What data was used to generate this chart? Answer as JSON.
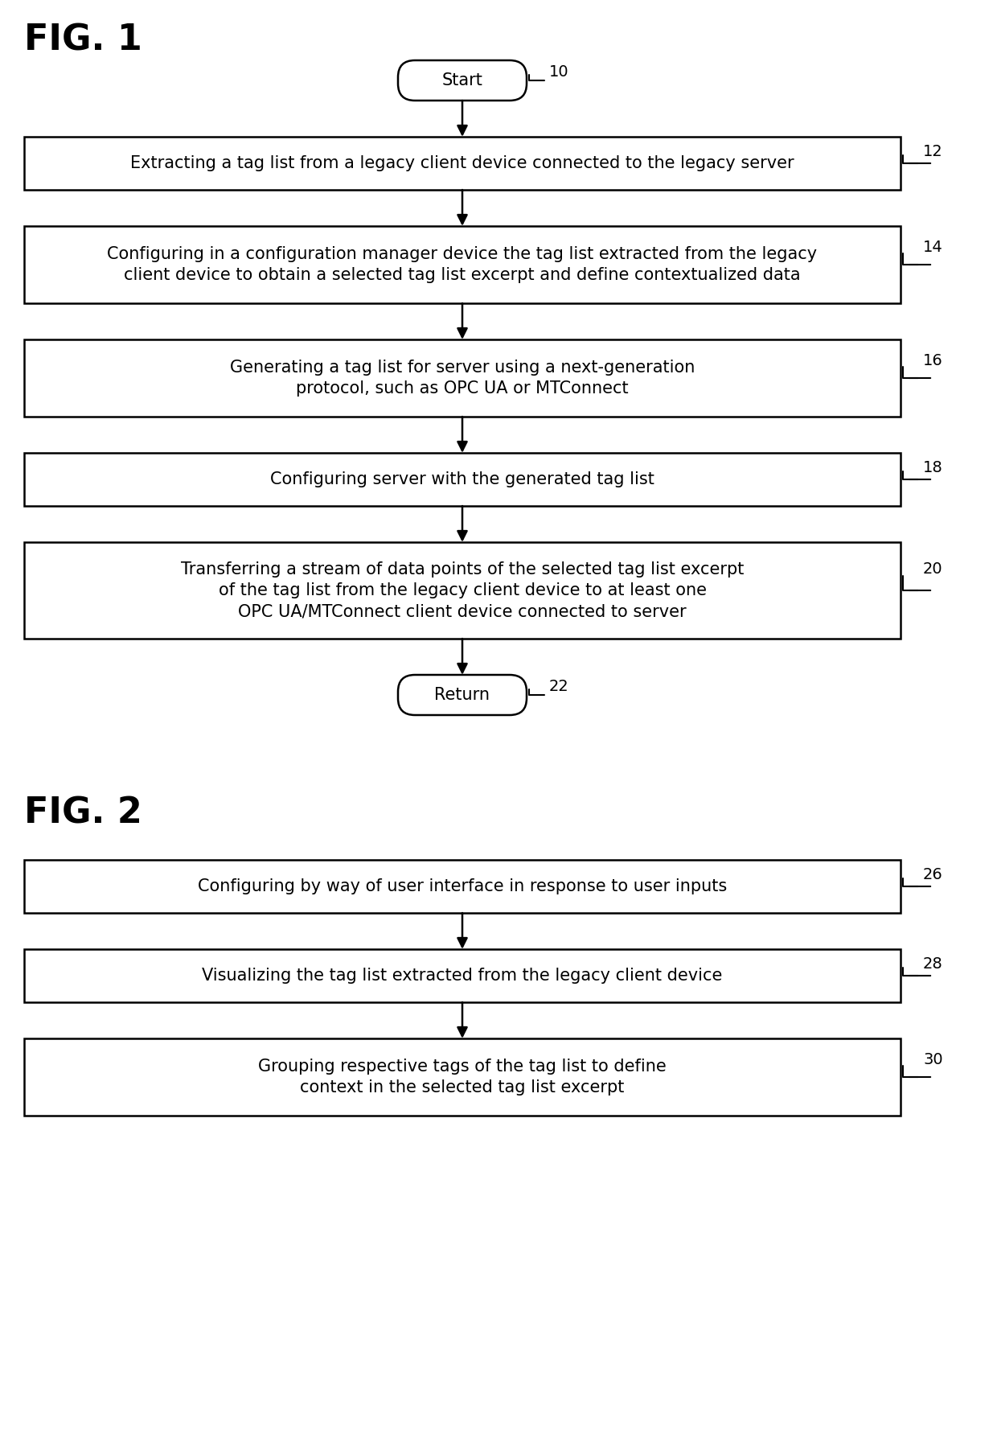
{
  "fig1_title": "FIG. 1",
  "fig2_title": "FIG. 2",
  "background_color": "#ffffff",
  "box_edge_color": "#000000",
  "box_face_color": "#ffffff",
  "text_color": "#000000",
  "arrow_color": "#000000",
  "fig1_boxes": [
    {
      "label": "Extracting a tag list from a legacy client device connected to the legacy server",
      "ref": "12",
      "lines": 1
    },
    {
      "label": "Configuring in a configuration manager device the tag list extracted from the legacy\nclient device to obtain a selected tag list excerpt and define contextualized data",
      "ref": "14",
      "lines": 2
    },
    {
      "label": "Generating a tag list for server using a next-generation\nprotocol, such as OPC UA or MTConnect",
      "ref": "16",
      "lines": 2
    },
    {
      "label": "Configuring server with the generated tag list",
      "ref": "18",
      "lines": 1
    },
    {
      "label": "Transferring a stream of data points of the selected tag list excerpt\nof the tag list from the legacy client device to at least one\nOPC UA/MTConnect client device connected to server",
      "ref": "20",
      "lines": 3
    }
  ],
  "fig2_boxes": [
    {
      "label": "Configuring by way of user interface in response to user inputs",
      "ref": "26",
      "lines": 1
    },
    {
      "label": "Visualizing the tag list extracted from the legacy client device",
      "ref": "28",
      "lines": 1
    },
    {
      "label": "Grouping respective tags of the tag list to define\ncontext in the selected tag list excerpt",
      "ref": "30",
      "lines": 2
    }
  ],
  "font_family": "DejaVu Sans",
  "title_fontsize": 32,
  "label_fontsize": 15,
  "ref_fontsize": 14
}
